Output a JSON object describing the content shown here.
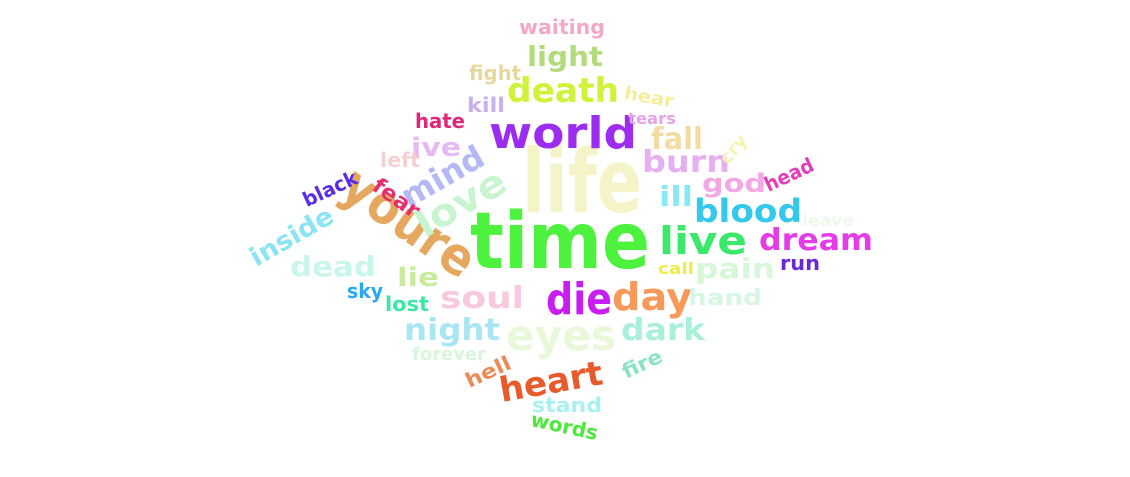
{
  "chart_data": {
    "type": "wordcloud",
    "title": "",
    "words": [
      {
        "text": "life",
        "weight": 88,
        "color": "#f5f3c8"
      },
      {
        "text": "time",
        "weight": 78,
        "color": "#4df23e"
      },
      {
        "text": "youre",
        "weight": 52,
        "color": "#e6a85e"
      },
      {
        "text": "world",
        "weight": 44,
        "color": "#9b2cf0"
      },
      {
        "text": "die",
        "weight": 44,
        "color": "#c81ef2"
      },
      {
        "text": "eyes",
        "weight": 42,
        "color": "#e8f8d8"
      },
      {
        "text": "love",
        "weight": 38,
        "color": "#c9f4d0"
      },
      {
        "text": "live",
        "weight": 38,
        "color": "#3ae86a"
      },
      {
        "text": "day",
        "weight": 38,
        "color": "#f59a5a"
      },
      {
        "text": "death",
        "weight": 34,
        "color": "#d0f23a"
      },
      {
        "text": "mind",
        "weight": 32,
        "color": "#b4b8f6"
      },
      {
        "text": "heart",
        "weight": 34,
        "color": "#e85a2c"
      },
      {
        "text": "blood",
        "weight": 32,
        "color": "#34c8ea"
      },
      {
        "text": "burn",
        "weight": 30,
        "color": "#e6b0f0"
      },
      {
        "text": "dream",
        "weight": 30,
        "color": "#e43ce6"
      },
      {
        "text": "soul",
        "weight": 30,
        "color": "#f8c8dc"
      },
      {
        "text": "night",
        "weight": 30,
        "color": "#a8e6f4"
      },
      {
        "text": "dark",
        "weight": 30,
        "color": "#a8f0da"
      },
      {
        "text": "fall",
        "weight": 30,
        "color": "#f2dca4"
      },
      {
        "text": "pain",
        "weight": 28,
        "color": "#d8f6d8"
      },
      {
        "text": "dead",
        "weight": 28,
        "color": "#c8f6ea"
      },
      {
        "text": "light",
        "weight": 28,
        "color": "#b0dc7c"
      },
      {
        "text": "ill",
        "weight": 28,
        "color": "#8ae8f4"
      },
      {
        "text": "inside",
        "weight": 26,
        "color": "#8ae4f4"
      },
      {
        "text": "ive",
        "weight": 26,
        "color": "#e6b8f4"
      },
      {
        "text": "lie",
        "weight": 26,
        "color": "#c8ec9c"
      },
      {
        "text": "god",
        "weight": 26,
        "color": "#f2a8e4"
      },
      {
        "text": "fear",
        "weight": 22,
        "color": "#e6306e"
      },
      {
        "text": "hand",
        "weight": 22,
        "color": "#d8f6e4"
      },
      {
        "text": "hate",
        "weight": 20,
        "color": "#e0287a"
      },
      {
        "text": "fire",
        "weight": 20,
        "color": "#8ae4c4"
      },
      {
        "text": "hell",
        "weight": 20,
        "color": "#ec8a58"
      },
      {
        "text": "stand",
        "weight": 20,
        "color": "#a8f0f2"
      },
      {
        "text": "lost",
        "weight": 20,
        "color": "#3ae8a4"
      },
      {
        "text": "black",
        "weight": 20,
        "color": "#5a2ce8"
      },
      {
        "text": "kill",
        "weight": 20,
        "color": "#c8b0f0"
      },
      {
        "text": "fight",
        "weight": 20,
        "color": "#e6d89c"
      },
      {
        "text": "waiting",
        "weight": 20,
        "color": "#f4a8c8"
      },
      {
        "text": "left",
        "weight": 20,
        "color": "#f6d0d0"
      },
      {
        "text": "head",
        "weight": 20,
        "color": "#e43cbc"
      },
      {
        "text": "run",
        "weight": 20,
        "color": "#6a28d8"
      },
      {
        "text": "sky",
        "weight": 20,
        "color": "#28a8f0"
      },
      {
        "text": "words",
        "weight": 20,
        "color": "#4ce83c"
      },
      {
        "text": "hear",
        "weight": 18,
        "color": "#f6ec9a"
      },
      {
        "text": "cry",
        "weight": 18,
        "color": "#f6f4b4"
      },
      {
        "text": "forever",
        "weight": 18,
        "color": "#d8f6dc"
      },
      {
        "text": "tears",
        "weight": 16,
        "color": "#e6a4e8"
      },
      {
        "text": "call",
        "weight": 16,
        "color": "#f2ec44"
      },
      {
        "text": "leave",
        "weight": 16,
        "color": "#f0f8ec"
      }
    ]
  }
}
